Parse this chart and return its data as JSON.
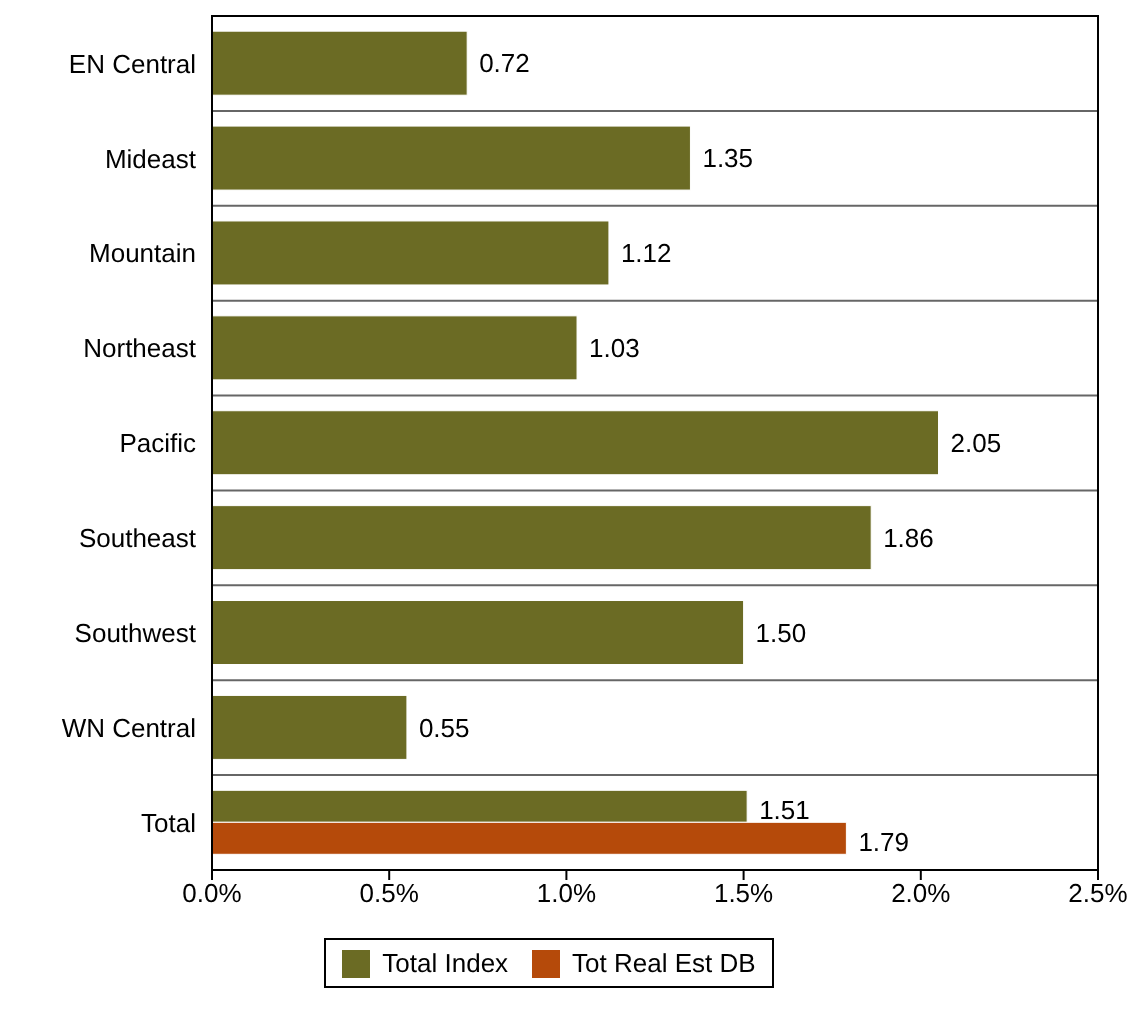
{
  "chart_data": {
    "type": "bar",
    "orientation": "horizontal",
    "categories": [
      "EN Central",
      "Mideast",
      "Mountain",
      "Northeast",
      "Pacific",
      "Southeast",
      "Southwest",
      "WN Central",
      "Total"
    ],
    "series": [
      {
        "name": "Total Index",
        "color": "#6b6b24",
        "values": [
          0.72,
          1.35,
          1.12,
          1.03,
          2.05,
          1.86,
          1.5,
          0.55,
          1.51
        ],
        "value_labels": [
          "0.72",
          "1.35",
          "1.12",
          "1.03",
          "2.05",
          "1.86",
          "1.50",
          "0.55",
          "1.51"
        ]
      },
      {
        "name": "Tot Real Est DB",
        "color": "#b54a0a",
        "values": [
          null,
          null,
          null,
          null,
          null,
          null,
          null,
          null,
          1.79
        ],
        "value_labels": [
          null,
          null,
          null,
          null,
          null,
          null,
          null,
          null,
          "1.79"
        ]
      }
    ],
    "xlim": [
      0,
      2.5
    ],
    "xticks": [
      {
        "value": 0,
        "label": "0.0%"
      },
      {
        "value": 0.5,
        "label": "0.5%"
      },
      {
        "value": 1,
        "label": "1.0%"
      },
      {
        "value": 1.5,
        "label": "1.5%"
      },
      {
        "value": 2,
        "label": "2.0%"
      },
      {
        "value": 2.5,
        "label": "2.5%"
      }
    ],
    "grid": "y",
    "legend": "bottom"
  }
}
